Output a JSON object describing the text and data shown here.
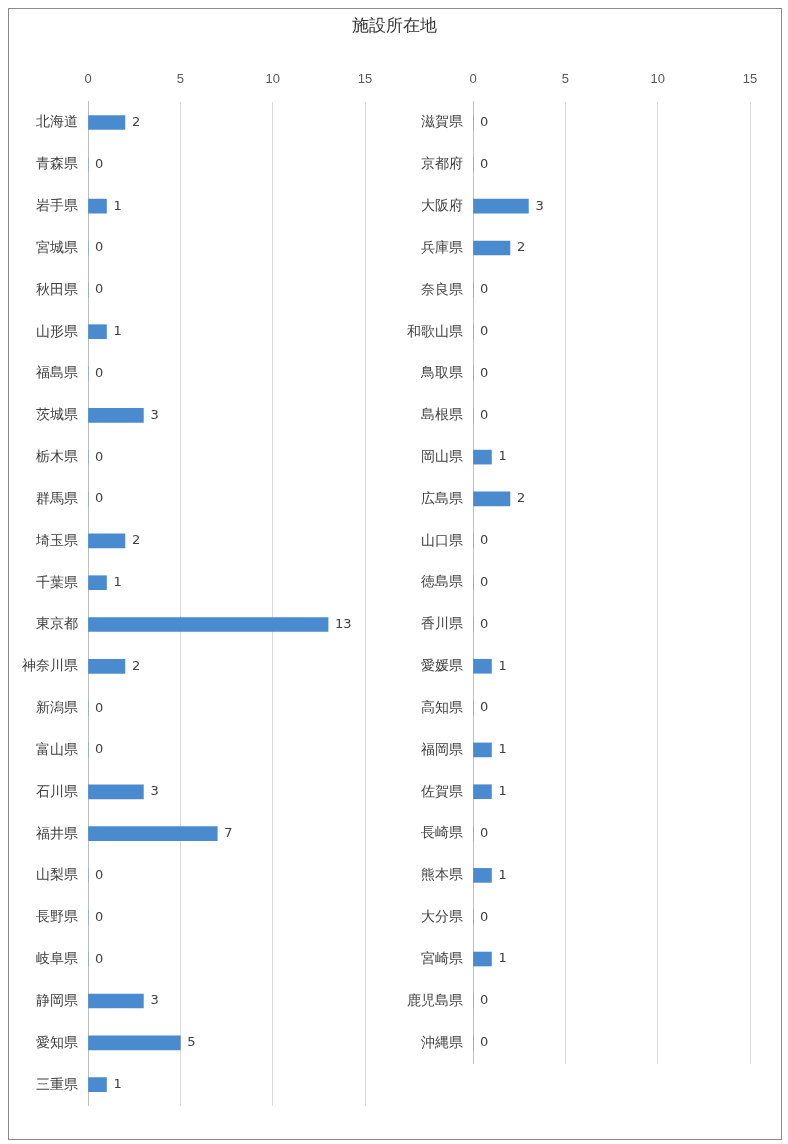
{
  "chart_data": [
    {
      "type": "bar",
      "title": "施設所在地",
      "orientation": "horizontal",
      "categories": [
        "北海道",
        "青森県",
        "岩手県",
        "宮城県",
        "秋田県",
        "山形県",
        "福島県",
        "茨城県",
        "栃木県",
        "群馬県",
        "埼玉県",
        "千葉県",
        "東京都",
        "神奈川県",
        "新潟県",
        "富山県",
        "石川県",
        "福井県",
        "山梨県",
        "長野県",
        "岐阜県",
        "静岡県",
        "愛知県",
        "三重県"
      ],
      "values": [
        2,
        0,
        1,
        0,
        0,
        1,
        0,
        3,
        0,
        0,
        2,
        1,
        13,
        2,
        0,
        0,
        3,
        7,
        0,
        0,
        0,
        3,
        5,
        1
      ],
      "color": "#4a8bd0",
      "xlim": [
        0,
        15
      ],
      "xticks": [
        0,
        5,
        10,
        15
      ],
      "grid": "x",
      "data_labels": true,
      "legend": false
    },
    {
      "type": "bar",
      "orientation": "horizontal",
      "categories": [
        "滋賀県",
        "京都府",
        "大阪府",
        "兵庫県",
        "奈良県",
        "和歌山県",
        "鳥取県",
        "島根県",
        "岡山県",
        "広島県",
        "山口県",
        "徳島県",
        "香川県",
        "愛媛県",
        "高知県",
        "福岡県",
        "佐賀県",
        "長崎県",
        "熊本県",
        "大分県",
        "宮崎県",
        "鹿児島県",
        "沖縄県"
      ],
      "values": [
        0,
        0,
        3,
        2,
        0,
        0,
        0,
        0,
        1,
        2,
        0,
        0,
        0,
        1,
        0,
        1,
        1,
        0,
        1,
        0,
        1,
        0,
        0
      ],
      "color": "#4a8bd0",
      "xlim": [
        0,
        15
      ],
      "xticks": [
        0,
        5,
        10,
        15
      ],
      "grid": "x",
      "data_labels": true,
      "legend": false
    }
  ]
}
